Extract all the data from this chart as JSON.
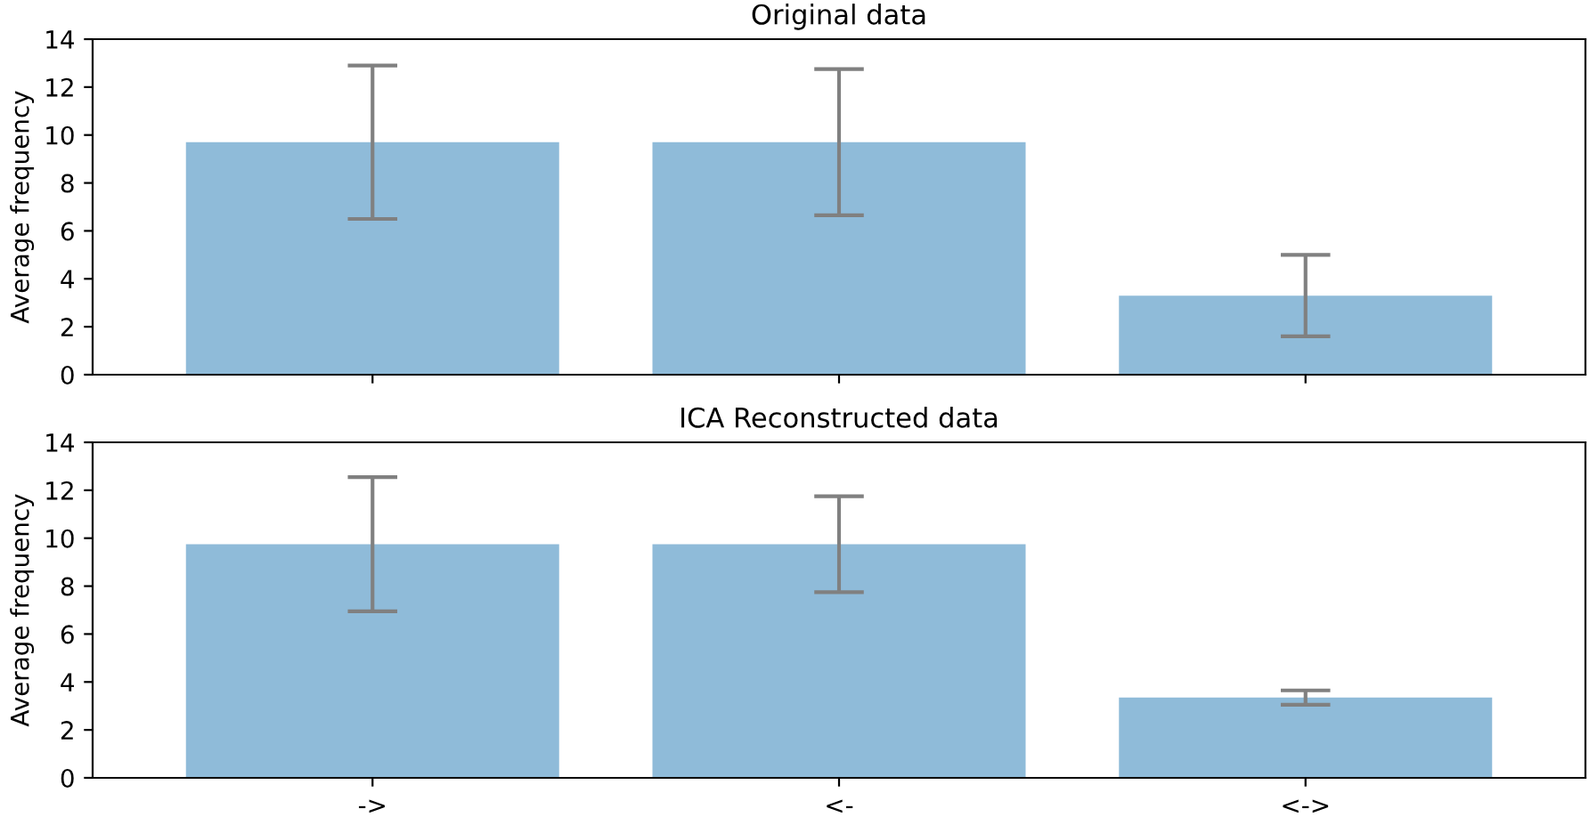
{
  "chart_data": [
    {
      "type": "bar",
      "title": "Original data",
      "ylabel": "Average frequency",
      "categories": [
        null,
        null,
        null
      ],
      "values": [
        9.7,
        9.7,
        3.3
      ],
      "errors": [
        3.2,
        3.05,
        1.7
      ],
      "color": "#8fbbd9",
      "ylim": [
        0,
        14
      ],
      "yticks": [
        0,
        2,
        4,
        6,
        8,
        10,
        12,
        14
      ]
    },
    {
      "type": "bar",
      "title": "ICA Reconstructed data",
      "ylabel": "Average frequency",
      "categories": [
        "->",
        "<-",
        "<->"
      ],
      "values": [
        9.75,
        9.75,
        3.35
      ],
      "errors": [
        2.8,
        2.0,
        0.3
      ],
      "color": "#8fbbd9",
      "ylim": [
        0,
        14
      ],
      "yticks": [
        0,
        2,
        4,
        6,
        8,
        10,
        12,
        14
      ]
    }
  ]
}
